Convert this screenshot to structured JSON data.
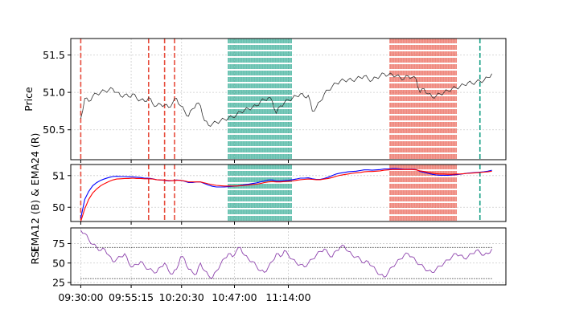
{
  "chart_data": [
    {
      "panel": "price",
      "type": "line",
      "ylabel": "Price",
      "ylim": [
        50.1,
        51.72
      ],
      "yticks": [
        50.5,
        51.0,
        51.5
      ],
      "ytick_labels": [
        "50.5",
        "51.0",
        "51.5"
      ],
      "grid": true,
      "line_color": "#333333",
      "x_minutes_from_open": [
        0,
        2,
        4,
        6,
        8,
        10,
        12,
        14,
        16,
        18,
        20,
        22,
        24,
        26,
        28,
        30,
        32,
        34,
        36,
        38,
        40,
        42,
        44,
        46,
        48,
        50,
        52,
        54,
        56,
        58,
        60,
        62,
        64,
        66,
        68,
        70,
        72,
        74,
        76,
        78,
        80,
        82,
        84,
        86,
        88,
        90,
        92,
        94,
        96,
        98,
        100,
        102,
        104,
        106,
        108,
        110,
        112,
        114,
        116,
        118,
        120,
        122,
        124,
        126,
        128,
        130,
        132,
        134,
        136,
        138,
        140,
        142,
        144,
        146,
        148,
        150,
        152,
        154,
        156,
        158,
        160,
        162,
        164,
        166,
        168,
        170,
        172,
        174,
        176,
        178,
        180,
        182,
        184,
        186,
        188,
        190,
        192,
        194,
        196,
        198,
        200,
        202,
        204,
        206
      ],
      "values": [
        50.65,
        50.92,
        50.88,
        50.95,
        50.98,
        51.0,
        51.02,
        51.03,
        51.05,
        51.0,
        50.95,
        50.97,
        50.94,
        50.98,
        50.92,
        50.9,
        50.88,
        50.93,
        50.85,
        50.82,
        50.84,
        50.83,
        50.8,
        50.86,
        50.92,
        50.82,
        50.75,
        50.68,
        50.78,
        50.85,
        50.82,
        50.62,
        50.56,
        50.58,
        50.6,
        50.62,
        50.64,
        50.66,
        50.67,
        50.7,
        50.74,
        50.76,
        50.78,
        50.8,
        50.82,
        50.88,
        50.9,
        50.93,
        50.88,
        50.72,
        50.82,
        50.86,
        50.9,
        50.92,
        50.95,
        50.98,
        50.94,
        50.96,
        50.75,
        50.8,
        50.88,
        50.98,
        51.03,
        51.08,
        51.12,
        51.15,
        51.16,
        51.17,
        51.16,
        51.18,
        51.2,
        51.22,
        51.18,
        51.16,
        51.2,
        51.22,
        51.25,
        51.23,
        51.24,
        51.22,
        51.2,
        51.18,
        51.22,
        51.2,
        51.18,
        51.0,
        51.05,
        50.98,
        50.94,
        50.95,
        50.98,
        51.0,
        51.02,
        51.05,
        51.06,
        51.08,
        51.1,
        51.13,
        51.12,
        51.14,
        51.15,
        51.16,
        51.2,
        51.25
      ]
    },
    {
      "panel": "ema",
      "type": "line",
      "ylabel": "EMA12 (B) & EMA24 (R)",
      "ylim": [
        49.55,
        51.35
      ],
      "yticks": [
        50,
        51
      ],
      "ytick_labels": [
        "50",
        "51"
      ],
      "grid": true,
      "series": [
        {
          "color": "#0000ff",
          "values": [
            49.65,
            50.25,
            50.5,
            50.68,
            50.78,
            50.85,
            50.9,
            50.94,
            50.97,
            50.98,
            50.97,
            50.97,
            50.96,
            50.96,
            50.95,
            50.94,
            50.92,
            50.92,
            50.9,
            50.87,
            50.86,
            50.85,
            50.83,
            50.84,
            50.86,
            50.85,
            50.82,
            50.78,
            50.78,
            50.8,
            50.8,
            50.75,
            50.7,
            50.66,
            50.64,
            50.64,
            50.64,
            50.65,
            50.66,
            50.67,
            50.69,
            50.71,
            50.73,
            50.75,
            50.77,
            50.8,
            50.83,
            50.86,
            50.86,
            50.83,
            50.83,
            50.84,
            50.85,
            50.87,
            50.89,
            50.92,
            50.92,
            50.93,
            50.9,
            50.88,
            50.88,
            50.91,
            50.95,
            51.0,
            51.05,
            51.08,
            51.1,
            51.12,
            51.13,
            51.14,
            51.16,
            51.18,
            51.18,
            51.17,
            51.18,
            51.19,
            51.21,
            51.21,
            51.22,
            51.22,
            51.21,
            51.2,
            51.2,
            51.2,
            51.19,
            51.13,
            51.1,
            51.07,
            51.04,
            51.02,
            51.01,
            51.01,
            51.01,
            51.02,
            51.03,
            51.04,
            51.06,
            51.08,
            51.09,
            51.1,
            51.11,
            51.12,
            51.14,
            51.17
          ]
        },
        {
          "color": "#ff0000",
          "values": [
            49.55,
            49.95,
            50.25,
            50.45,
            50.58,
            50.68,
            50.75,
            50.81,
            50.86,
            50.89,
            50.9,
            50.91,
            50.91,
            50.92,
            50.91,
            50.91,
            50.9,
            50.9,
            50.89,
            50.87,
            50.86,
            50.86,
            50.84,
            50.84,
            50.85,
            50.85,
            50.83,
            50.8,
            50.8,
            50.8,
            50.8,
            50.77,
            50.74,
            50.71,
            50.69,
            50.68,
            50.67,
            50.67,
            50.67,
            50.67,
            50.68,
            50.69,
            50.7,
            50.72,
            50.73,
            50.75,
            50.78,
            50.8,
            50.81,
            50.8,
            50.8,
            50.81,
            50.82,
            50.83,
            50.85,
            50.87,
            50.88,
            50.89,
            50.88,
            50.87,
            50.87,
            50.89,
            50.91,
            50.94,
            50.98,
            51.01,
            51.03,
            51.05,
            51.07,
            51.09,
            51.1,
            51.12,
            51.13,
            51.13,
            51.14,
            51.15,
            51.17,
            51.18,
            51.19,
            51.19,
            51.19,
            51.19,
            51.19,
            51.19,
            51.18,
            51.15,
            51.13,
            51.1,
            51.08,
            51.06,
            51.05,
            51.05,
            51.04,
            51.04,
            51.05,
            51.05,
            51.06,
            51.07,
            51.08,
            51.09,
            51.1,
            51.11,
            51.12,
            51.14
          ]
        }
      ]
    },
    {
      "panel": "rsi",
      "type": "line",
      "ylabel": "RSI",
      "ylim": [
        22,
        95
      ],
      "yticks": [
        25,
        50,
        75
      ],
      "ytick_labels": [
        "25",
        "50",
        "75"
      ],
      "grid": true,
      "line_color": "#8e44ad",
      "threshold_upper": 70,
      "threshold_lower": 30,
      "values": [
        92,
        88,
        80,
        74,
        70,
        66,
        68,
        60,
        52,
        55,
        58,
        62,
        50,
        45,
        48,
        52,
        46,
        42,
        40,
        38,
        45,
        50,
        40,
        36,
        42,
        58,
        55,
        42,
        38,
        36,
        50,
        40,
        34,
        31,
        40,
        48,
        56,
        62,
        58,
        66,
        70,
        60,
        55,
        52,
        46,
        40,
        38,
        45,
        52,
        62,
        58,
        66,
        60,
        55,
        50,
        48,
        45,
        50,
        55,
        60,
        65,
        68,
        62,
        58,
        66,
        70,
        72,
        65,
        60,
        58,
        55,
        50,
        52,
        46,
        40,
        35,
        32,
        38,
        45,
        50,
        55,
        60,
        62,
        58,
        52,
        48,
        44,
        40,
        38,
        42,
        46,
        50,
        54,
        58,
        62,
        60,
        56,
        58,
        62,
        66,
        64,
        60,
        62,
        68
      ]
    }
  ],
  "xaxis": {
    "domain_minutes": [
      -5,
      213
    ],
    "ticks_minutes": [
      0,
      25.25,
      50.5,
      77,
      104
    ],
    "tick_labels": [
      "09:30:00",
      "09:55:15",
      "10:20:30",
      "10:47:00",
      "11:14:00"
    ]
  },
  "signals": {
    "sell_lines_minutes": [
      0,
      34,
      42,
      47
    ],
    "buy_lines_minutes": [
      200
    ],
    "buy_band_minutes": [
      74,
      106
    ],
    "sell_band_minutes": [
      155,
      188
    ],
    "buy_color": "#16a085",
    "sell_color": "#e74c3c"
  }
}
